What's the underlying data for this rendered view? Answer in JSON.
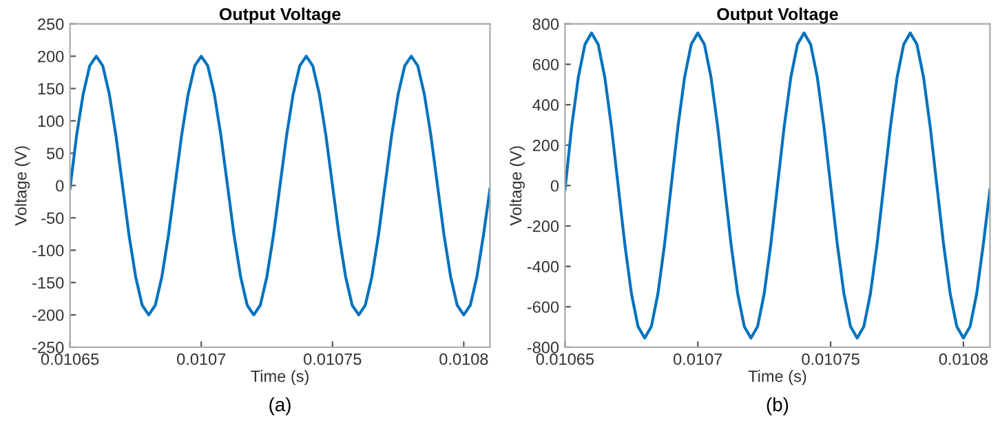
{
  "chart_data": [
    {
      "type": "line",
      "title": "Output Voltage",
      "xlabel": "Time (s)",
      "ylabel": "Voltage (V)",
      "annotations": [
        "(a)"
      ],
      "x": [
        0.01065,
        0.0106525,
        0.010655,
        0.0106575,
        0.01066,
        0.0106625,
        0.010665,
        0.0106675,
        0.01067,
        0.0106725,
        0.010675,
        0.0106775,
        0.01068,
        0.0106825,
        0.010685,
        0.0106875,
        0.01069,
        0.0106925,
        0.010695,
        0.0106975,
        0.0107,
        0.0107025,
        0.010705,
        0.0107075,
        0.01071,
        0.0107125,
        0.010715,
        0.0107175,
        0.01072,
        0.0107225,
        0.010725,
        0.0107275,
        0.01073,
        0.0107325,
        0.010735,
        0.0107375,
        0.01074,
        0.0107425,
        0.010745,
        0.0107475,
        0.01075,
        0.0107525,
        0.010755,
        0.0107575,
        0.01076,
        0.0107625,
        0.010765,
        0.0107675,
        0.01077,
        0.0107725,
        0.010775,
        0.0107775,
        0.01078,
        0.0107825,
        0.010785,
        0.0107875,
        0.01079,
        0.0107925,
        0.010795,
        0.0107975,
        0.0108,
        0.0108025,
        0.010805,
        0.0108075,
        0.01081
      ],
      "series": [
        {
          "color": "#0072bd",
          "values": [
            -5,
            77,
            141,
            185,
            200,
            185,
            141,
            77,
            0,
            -77,
            -141,
            -185,
            -200,
            -185,
            -141,
            -77,
            0,
            77,
            141,
            185,
            200,
            185,
            141,
            77,
            0,
            -77,
            -141,
            -185,
            -200,
            -185,
            -141,
            -77,
            0,
            77,
            141,
            185,
            200,
            185,
            141,
            77,
            0,
            -77,
            -141,
            -185,
            -200,
            -185,
            -141,
            -77,
            0,
            77,
            141,
            185,
            200,
            185,
            141,
            77,
            0,
            -77,
            -141,
            -185,
            -200,
            -185,
            -141,
            -77,
            -5
          ]
        }
      ],
      "xlim": [
        0.01065,
        0.01081
      ],
      "xticks": [
        0.01065,
        0.0107,
        0.01075,
        0.0108
      ],
      "ylim": [
        -250,
        250
      ],
      "yticks": [
        -250,
        -200,
        -150,
        -100,
        -50,
        0,
        50,
        100,
        150,
        200,
        250
      ],
      "grid": false
    },
    {
      "type": "line",
      "title": "Output Voltage",
      "xlabel": "Time (s)",
      "ylabel": "Voltage (V)",
      "annotations": [
        "(b)"
      ],
      "x": [
        0.01065,
        0.0106525,
        0.010655,
        0.0106575,
        0.01066,
        0.0106625,
        0.010665,
        0.0106675,
        0.01067,
        0.0106725,
        0.010675,
        0.0106775,
        0.01068,
        0.0106825,
        0.010685,
        0.0106875,
        0.01069,
        0.0106925,
        0.010695,
        0.0106975,
        0.0107,
        0.0107025,
        0.010705,
        0.0107075,
        0.01071,
        0.0107125,
        0.010715,
        0.0107175,
        0.01072,
        0.0107225,
        0.010725,
        0.0107275,
        0.01073,
        0.0107325,
        0.010735,
        0.0107375,
        0.01074,
        0.0107425,
        0.010745,
        0.0107475,
        0.01075,
        0.0107525,
        0.010755,
        0.0107575,
        0.01076,
        0.0107625,
        0.010765,
        0.0107675,
        0.01077,
        0.0107725,
        0.010775,
        0.0107775,
        0.01078,
        0.0107825,
        0.010785,
        0.0107875,
        0.01079,
        0.0107925,
        0.010795,
        0.0107975,
        0.0108,
        0.0108025,
        0.010805,
        0.0108075,
        0.01081
      ],
      "series": [
        {
          "color": "#0072bd",
          "values": [
            -20,
            289,
            534,
            698,
            755,
            698,
            534,
            289,
            0,
            -289,
            -534,
            -698,
            -755,
            -698,
            -534,
            -289,
            0,
            289,
            534,
            698,
            755,
            698,
            534,
            289,
            0,
            -289,
            -534,
            -698,
            -755,
            -698,
            -534,
            -289,
            0,
            289,
            534,
            698,
            755,
            698,
            534,
            289,
            0,
            -289,
            -534,
            -698,
            -755,
            -698,
            -534,
            -289,
            0,
            289,
            534,
            698,
            755,
            698,
            534,
            289,
            0,
            -289,
            -534,
            -698,
            -755,
            -698,
            -534,
            -289,
            -20
          ]
        }
      ],
      "xlim": [
        0.01065,
        0.01081
      ],
      "xticks": [
        0.01065,
        0.0107,
        0.01075,
        0.0108
      ],
      "ylim": [
        -800,
        800
      ],
      "yticks": [
        -800,
        -600,
        -400,
        -200,
        0,
        200,
        400,
        600,
        800
      ],
      "grid": false
    }
  ]
}
